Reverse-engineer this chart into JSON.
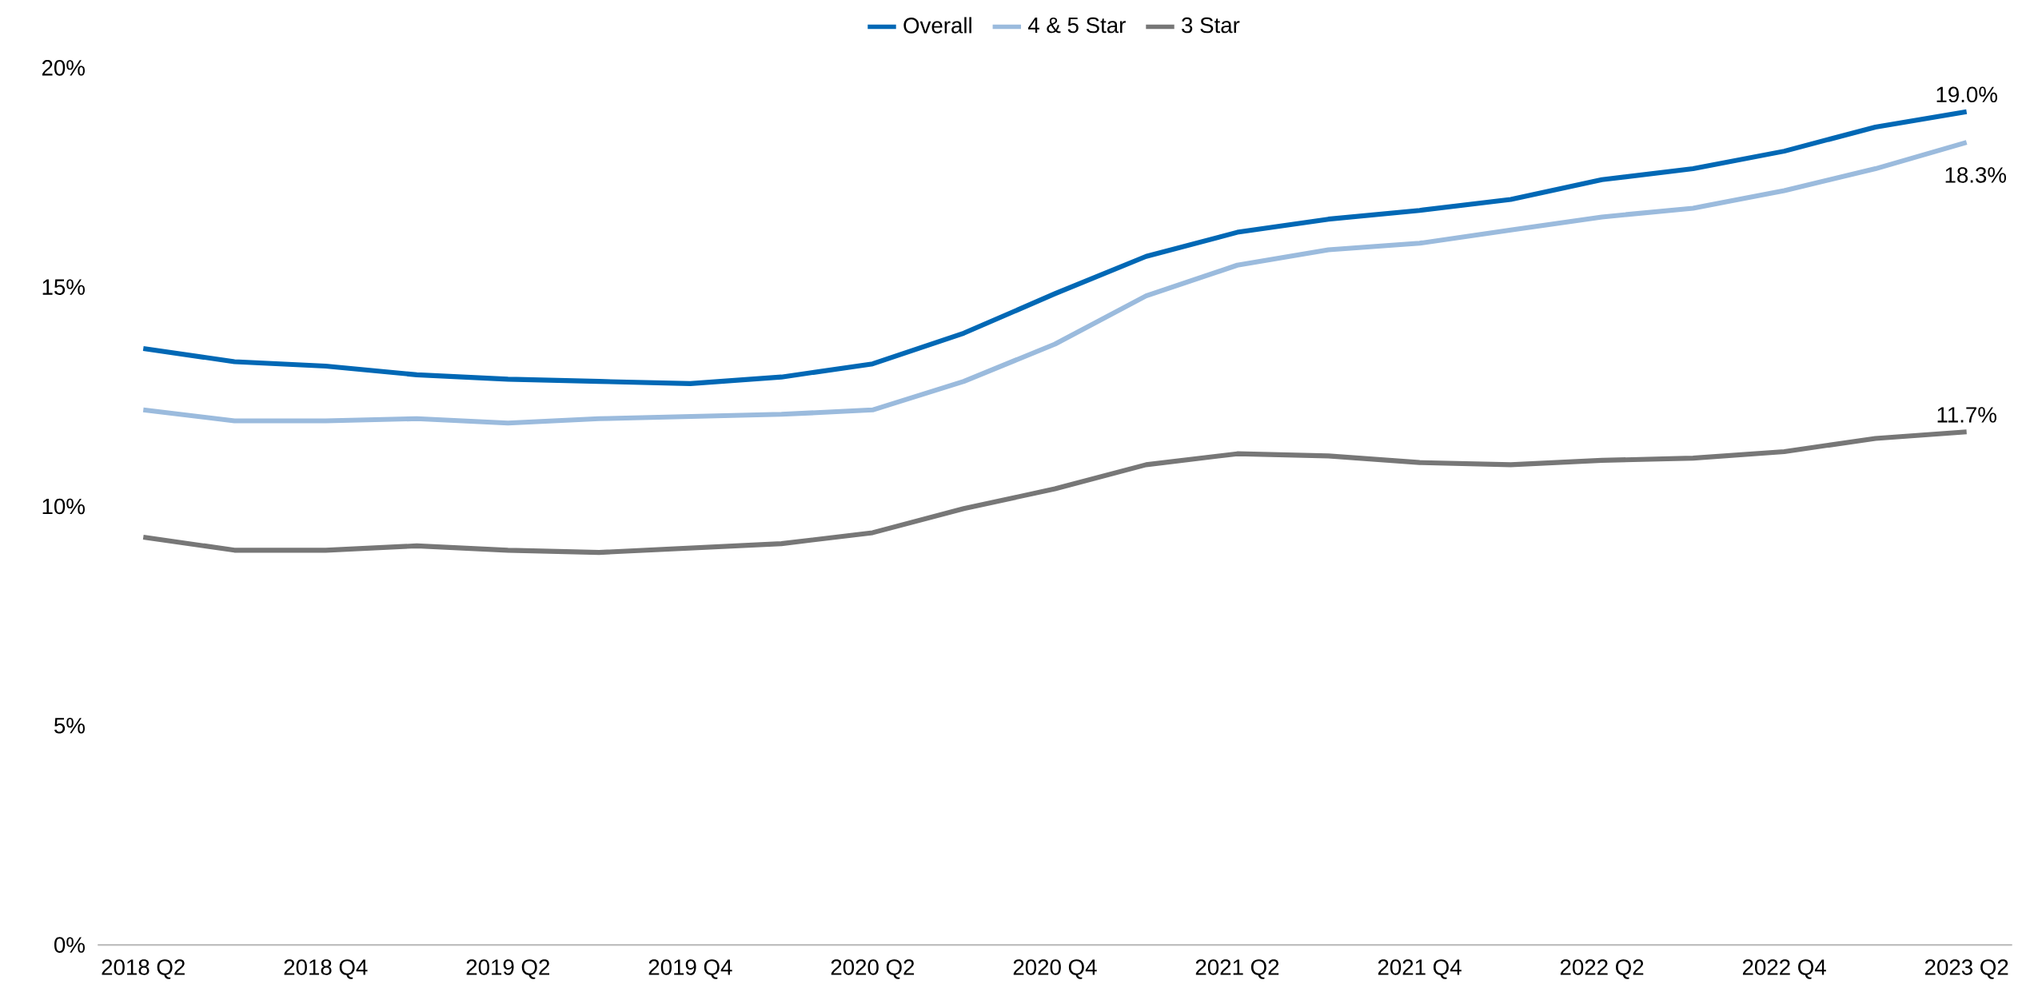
{
  "chart_data": {
    "type": "line",
    "categories": [
      "2018 Q2",
      null,
      "2018 Q4",
      null,
      "2019 Q2",
      null,
      "2019 Q4",
      null,
      "2020 Q2",
      null,
      "2020 Q4",
      null,
      "2021 Q2",
      null,
      "2021 Q4",
      null,
      "2022 Q2",
      null,
      "2022 Q4",
      null,
      "2023 Q2"
    ],
    "series": [
      {
        "name": "Overall",
        "color": "#0068b5",
        "values": [
          13.6,
          13.3,
          13.2,
          13.0,
          12.9,
          12.85,
          12.8,
          12.95,
          13.25,
          13.95,
          14.85,
          15.7,
          16.25,
          16.55,
          16.75,
          17.0,
          17.45,
          17.7,
          18.1,
          18.65,
          19.0
        ],
        "value_labels": [
          null,
          null,
          null,
          null,
          null,
          null,
          null,
          null,
          null,
          null,
          null,
          null,
          null,
          null,
          null,
          null,
          null,
          null,
          null,
          null,
          "19.0%"
        ]
      },
      {
        "name": "4 & 5 Star",
        "color": "#9bbbdd",
        "values": [
          12.2,
          11.95,
          11.95,
          12.0,
          11.9,
          12.0,
          12.05,
          12.1,
          12.2,
          12.85,
          13.7,
          14.8,
          15.5,
          15.85,
          16.0,
          16.3,
          16.6,
          16.8,
          17.2,
          17.7,
          18.3
        ],
        "value_labels": [
          null,
          null,
          null,
          null,
          null,
          null,
          null,
          null,
          null,
          null,
          null,
          null,
          null,
          null,
          null,
          null,
          null,
          null,
          null,
          null,
          "18.3%"
        ]
      },
      {
        "name": "3 Star",
        "color": "#777777",
        "values": [
          9.3,
          9.0,
          9.0,
          9.1,
          9.0,
          8.95,
          9.05,
          9.15,
          9.4,
          9.95,
          10.4,
          10.95,
          11.2,
          11.15,
          11.0,
          10.95,
          11.05,
          11.1,
          11.25,
          11.55,
          11.7
        ],
        "value_labels": [
          null,
          null,
          null,
          null,
          null,
          null,
          null,
          null,
          null,
          null,
          null,
          null,
          null,
          null,
          null,
          null,
          null,
          null,
          null,
          null,
          "11.7%"
        ]
      }
    ],
    "ylim": [
      0,
      20
    ],
    "yticks": [
      {
        "value": 0,
        "label": "0%"
      },
      {
        "value": 5,
        "label": "5%"
      },
      {
        "value": 10,
        "label": "10%"
      },
      {
        "value": 15,
        "label": "15%"
      },
      {
        "value": 20,
        "label": "20%"
      }
    ],
    "legend": "top",
    "grid": false,
    "marker": "none",
    "line_style": "solid"
  }
}
